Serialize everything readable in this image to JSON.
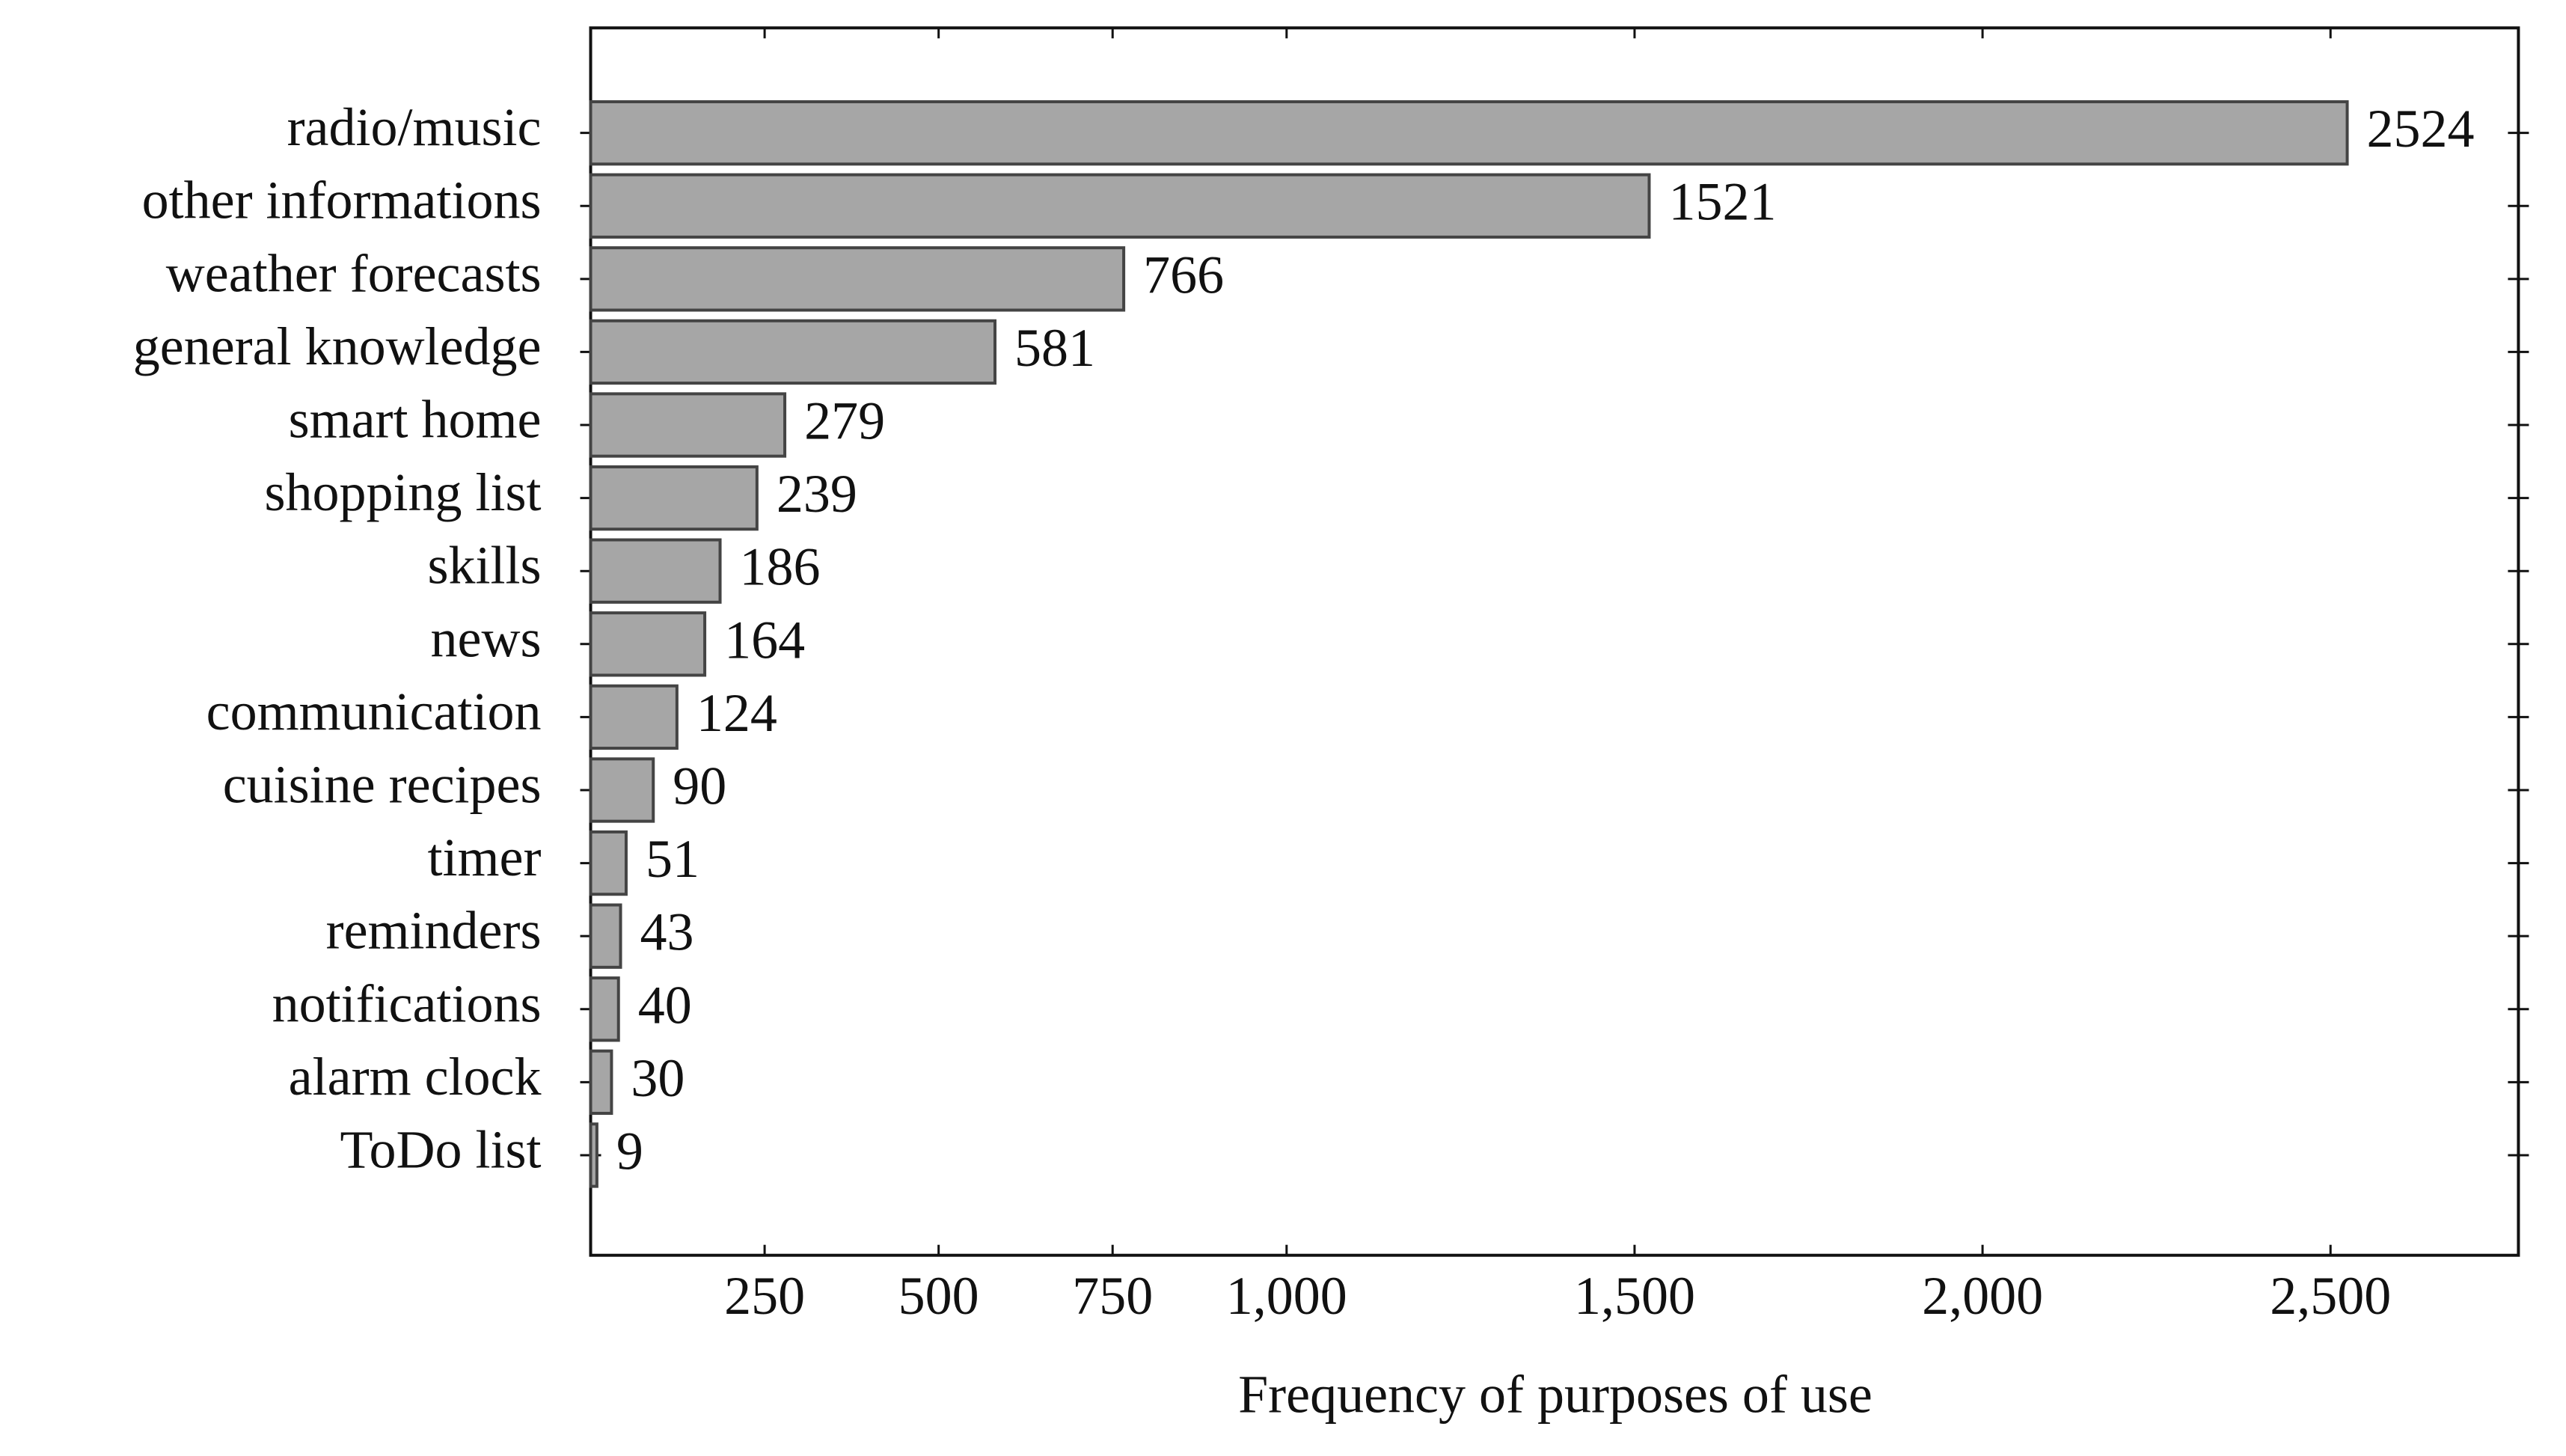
{
  "chart_data": {
    "type": "barh",
    "x_label": "Frequency of purposes of use",
    "categories": [
      "radio/music",
      "other informations",
      "weather forecasts",
      "general knowledge",
      "smart home",
      "shopping list",
      "skills",
      "news",
      "communication",
      "cuisine recipes",
      "timer",
      "reminders",
      "notifications",
      "alarm clock",
      "ToDo list"
    ],
    "values": [
      2524,
      1521,
      766,
      581,
      279,
      239,
      186,
      164,
      124,
      90,
      51,
      43,
      40,
      30,
      9
    ],
    "color": "#a6a6a6",
    "xlim": [
      0,
      2770
    ],
    "xticks": [
      250,
      500,
      750,
      {
        "value": 1000,
        "label": "1,000"
      },
      {
        "value": 1500,
        "label": "1,500"
      },
      {
        "value": 2000,
        "label": "2,000"
      },
      {
        "value": 2500,
        "label": "2,500"
      }
    ],
    "grid": false
  }
}
